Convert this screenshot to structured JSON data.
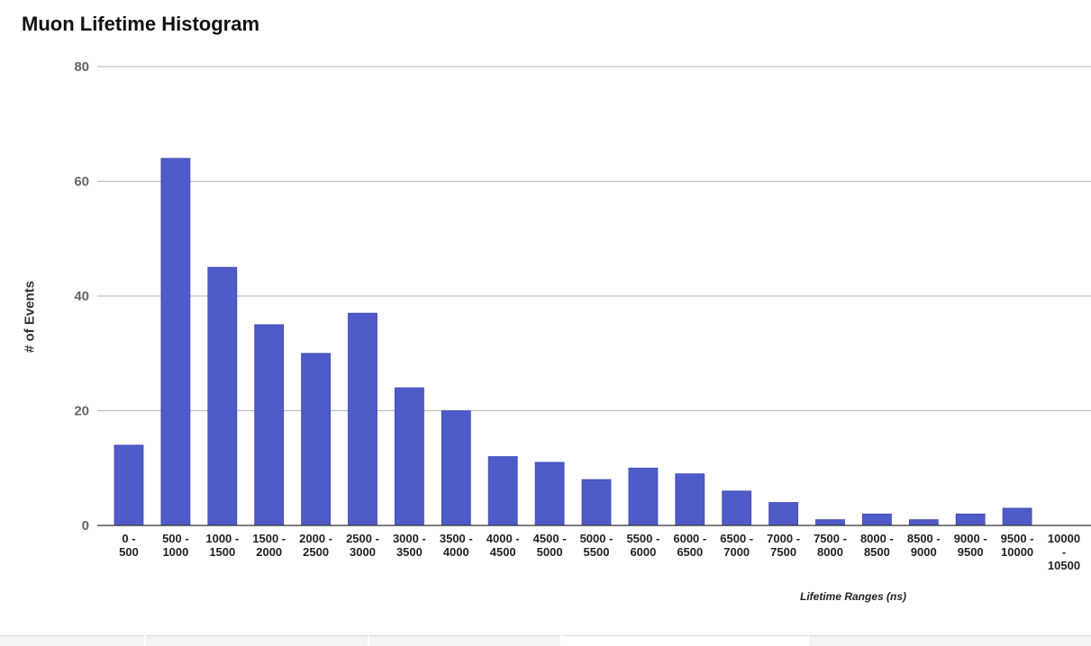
{
  "chart_data": {
    "type": "bar",
    "title": "Muon Lifetime Histogram",
    "xlabel": "Lifetime Ranges (ns)",
    "ylabel": "# of Events",
    "ylim": [
      0,
      80
    ],
    "yticks": [
      0,
      20,
      40,
      60,
      80
    ],
    "grid": true,
    "legend": "none",
    "bar_color": "#4f5bc9",
    "categories": [
      "0 - 500",
      "500 - 1000",
      "1000 - 1500",
      "1500 - 2000",
      "2000 - 2500",
      "2500 - 3000",
      "3000 - 3500",
      "3500 - 4000",
      "4000 - 4500",
      "4500 - 5000",
      "5000 - 5500",
      "5500 - 6000",
      "6000 - 6500",
      "6500 - 7000",
      "7000 - 7500",
      "7500 - 8000",
      "8000 - 8500",
      "8500 - 9000",
      "9000 - 9500",
      "9500 - 10000",
      "10000 - 10500"
    ],
    "category_label_lines": [
      [
        "0 -",
        "500"
      ],
      [
        "500 -",
        "1000"
      ],
      [
        "1000 -",
        "1500"
      ],
      [
        "1500 -",
        "2000"
      ],
      [
        "2000 -",
        "2500"
      ],
      [
        "2500 -",
        "3000"
      ],
      [
        "3000 -",
        "3500"
      ],
      [
        "3500 -",
        "4000"
      ],
      [
        "4000 -",
        "4500"
      ],
      [
        "4500 -",
        "5000"
      ],
      [
        "5000 -",
        "5500"
      ],
      [
        "5500 -",
        "6000"
      ],
      [
        "6000 -",
        "6500"
      ],
      [
        "6500 -",
        "7000"
      ],
      [
        "7000 -",
        "7500"
      ],
      [
        "7500 -",
        "8000"
      ],
      [
        "8000 -",
        "8500"
      ],
      [
        "8500 -",
        "9000"
      ],
      [
        "9000 -",
        "9500"
      ],
      [
        "9500 -",
        "10000"
      ],
      [
        "10000",
        "-",
        "10500"
      ]
    ],
    "values": [
      14,
      64,
      45,
      35,
      30,
      37,
      24,
      20,
      12,
      11,
      8,
      10,
      9,
      6,
      4,
      1,
      2,
      1,
      2,
      3,
      0
    ]
  }
}
